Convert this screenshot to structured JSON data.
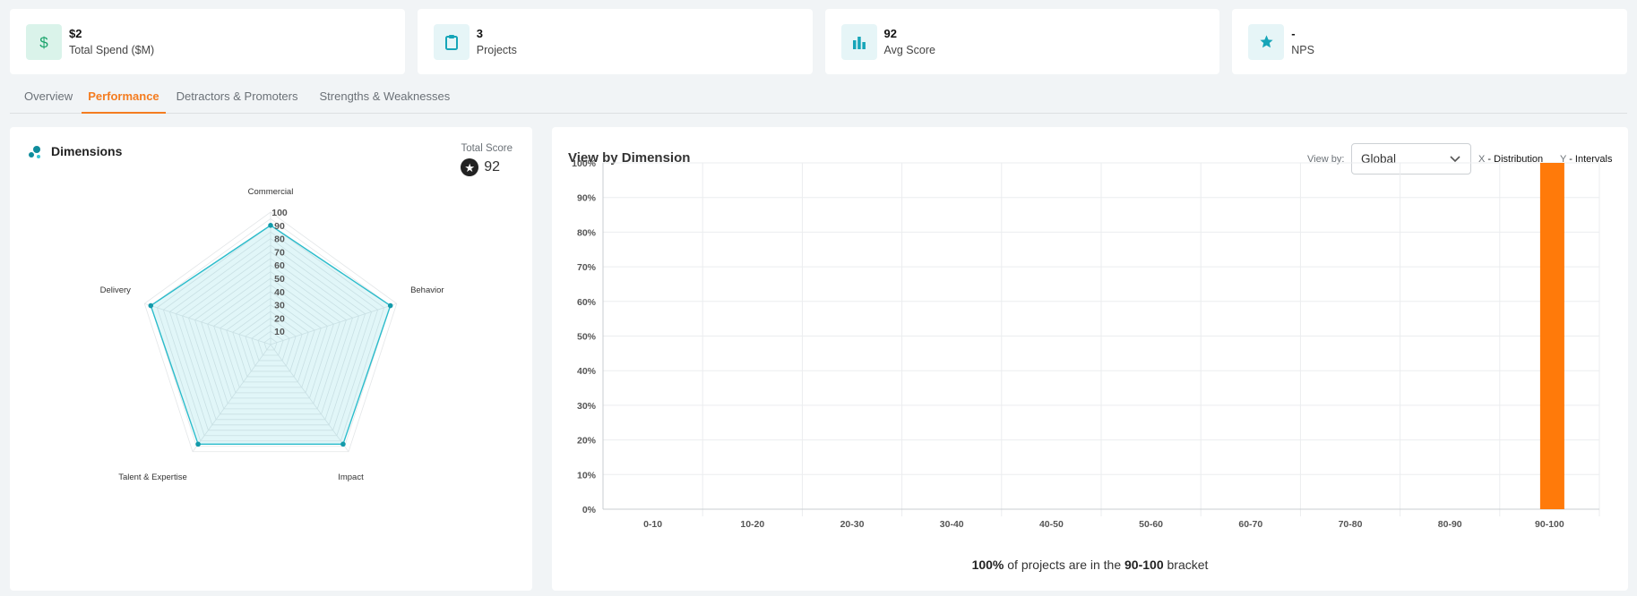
{
  "kpis": [
    {
      "value": "$2",
      "label": "Total Spend ($M)",
      "icon": "dollar-icon"
    },
    {
      "value": "3",
      "label": "Projects",
      "icon": "clipboard-icon"
    },
    {
      "value": "92",
      "label": "Avg Score",
      "icon": "bar-chart-icon"
    },
    {
      "value": "-",
      "label": "NPS",
      "icon": "star-icon"
    }
  ],
  "tabs": [
    "Overview",
    "Performance",
    "Detractors & Promoters",
    "Strengths & Weaknesses"
  ],
  "active_tab": "Performance",
  "dimensions": {
    "title": "Dimensions",
    "total_score_label": "Total Score",
    "total_score": "92"
  },
  "view_by_dimension": {
    "title": "View by Dimension",
    "view_by_label": "View by:",
    "select_value": "Global",
    "x_key": "X",
    "x_desc": "- Distribution",
    "y_key": "Y",
    "y_desc": "- Intervals",
    "caption": {
      "pct": "100%",
      "mid": " of projects are in the ",
      "bracket": "90-100",
      "tail": " bracket"
    }
  },
  "colors": {
    "accent": "#f47c20",
    "radar": "#2bbccb",
    "bar": "#ff7a0a"
  },
  "chart_data": [
    {
      "type": "radar",
      "axes": [
        "Commercial",
        "Behavior",
        "Impact",
        "Talent & Expertise",
        "Delivery"
      ],
      "values": [
        90,
        95,
        93,
        93,
        95
      ],
      "rings": [
        10,
        20,
        30,
        40,
        50,
        60,
        70,
        80,
        90,
        100
      ],
      "range": [
        0,
        100
      ]
    },
    {
      "type": "bar",
      "categories": [
        "0-10",
        "10-20",
        "20-30",
        "30-40",
        "40-50",
        "50-60",
        "60-70",
        "70-80",
        "80-90",
        "90-100"
      ],
      "values": [
        0,
        0,
        0,
        0,
        0,
        0,
        0,
        0,
        0,
        100
      ],
      "yticks": [
        "0%",
        "10%",
        "20%",
        "30%",
        "40%",
        "50%",
        "60%",
        "70%",
        "80%",
        "90%",
        "100%"
      ],
      "ylim": [
        0,
        100
      ],
      "grid": true
    }
  ]
}
